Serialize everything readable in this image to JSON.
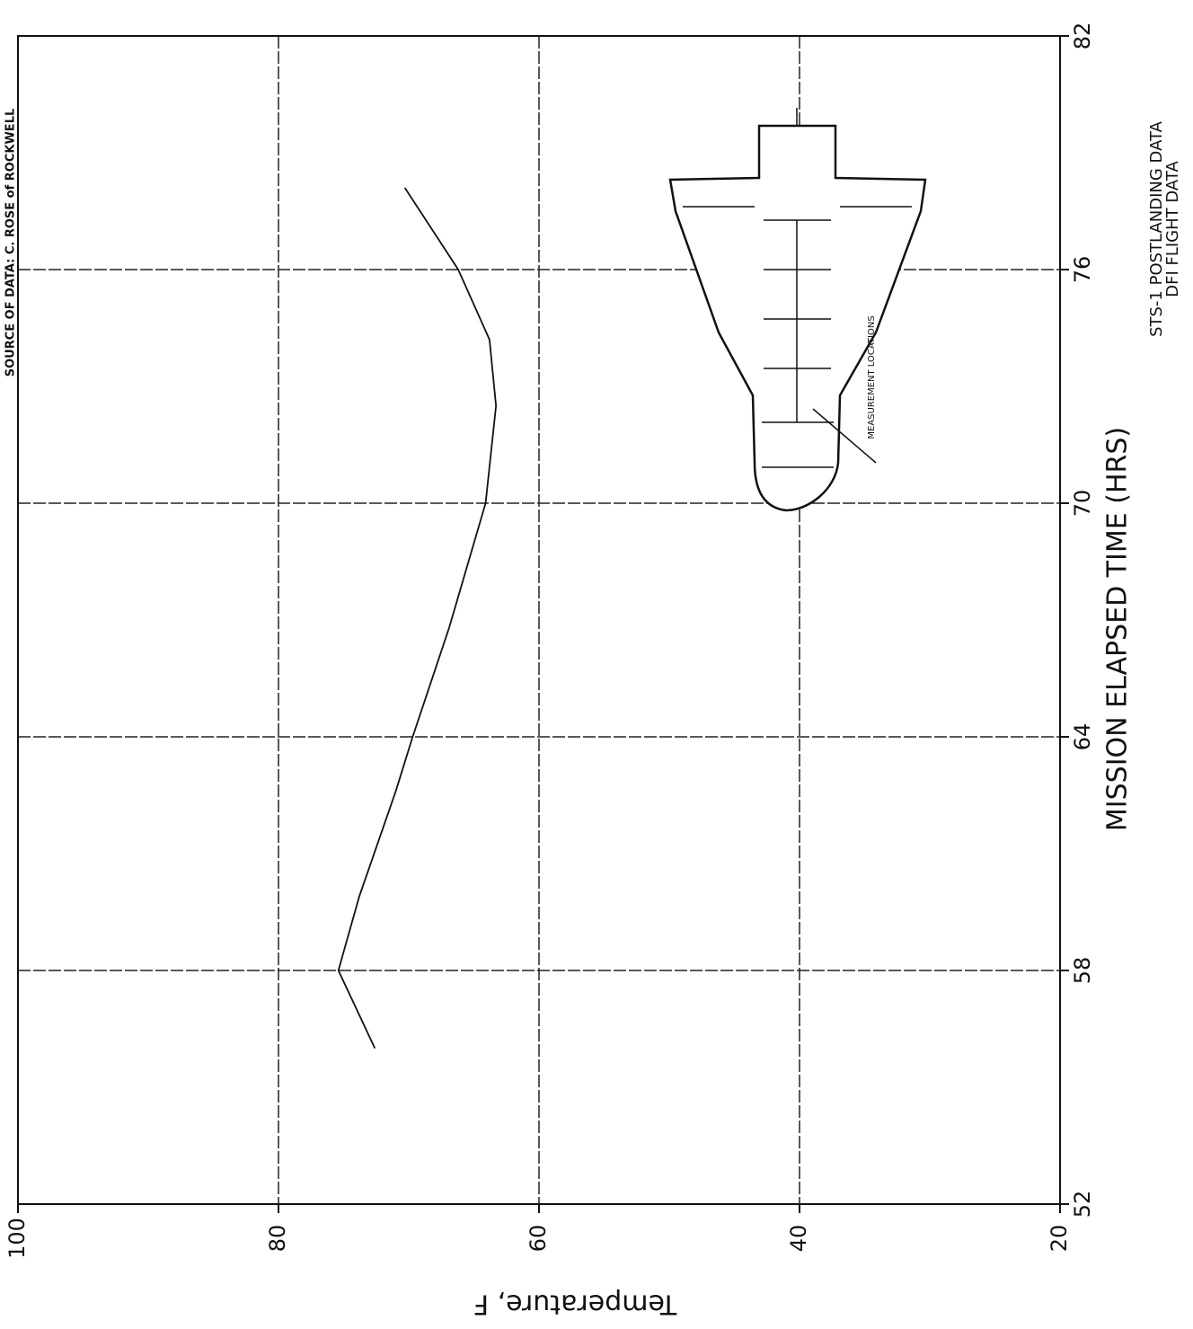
{
  "chart_data": {
    "type": "line",
    "source": "SOURCE OF DATA: C. ROSE of ROCKWELL",
    "x_label": "MISSION ELAPSED TIME (HRS)",
    "y_label": "Temperature, F",
    "notes": [
      "STS-1 POSTLANDING DATA",
      "DFI FLIGHT DATA"
    ],
    "annotation": "MEASUREMENT LOCATIONS",
    "x": [
      56,
      58,
      59.9,
      62.6,
      64,
      66.8,
      70,
      72.5,
      74.2,
      76,
      78.1
    ],
    "values": [
      72.6,
      75.4,
      73.8,
      71.0,
      69.7,
      66.9,
      64.1,
      63.3,
      63.8,
      66.2,
      70.3
    ],
    "color": "#111111",
    "xlim": [
      52,
      82
    ],
    "xticks": [
      52,
      58,
      64,
      70,
      76,
      82
    ],
    "ylim": [
      20,
      100
    ],
    "yticks": [
      20,
      40,
      60,
      80,
      100
    ],
    "grid": true
  }
}
